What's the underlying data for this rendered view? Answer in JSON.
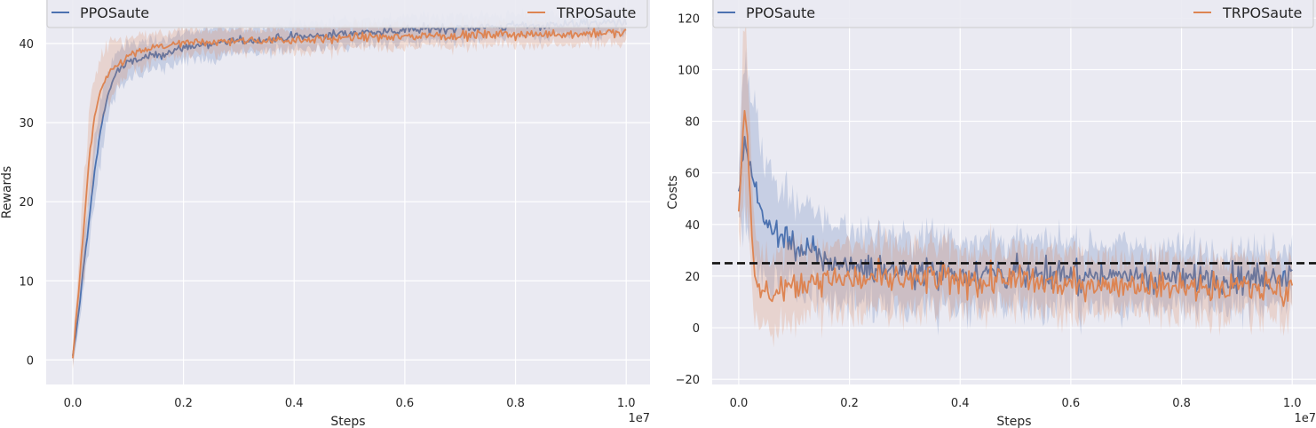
{
  "chart_data": [
    {
      "type": "line",
      "xlabel": "Steps",
      "ylabel": "Rewards",
      "x_multiplier_label": "1e7",
      "xlim": [
        -0.048,
        1.043
      ],
      "ylim": [
        -3.1,
        45.5
      ],
      "xticks": [
        0.0,
        0.2,
        0.4,
        0.6,
        0.8,
        1.0
      ],
      "xtick_labels": [
        "0.0",
        "0.2",
        "0.4",
        "0.6",
        "0.8",
        "1.0"
      ],
      "yticks": [
        0,
        10,
        20,
        30,
        40
      ],
      "ytick_labels": [
        "0",
        "10",
        "20",
        "30",
        "40"
      ],
      "grid": true,
      "legend_position": "top",
      "series": [
        {
          "name": "PPOSaute",
          "color": "#4c72b0",
          "x": [
            0.0,
            0.01,
            0.02,
            0.03,
            0.04,
            0.05,
            0.06,
            0.07,
            0.08,
            0.1,
            0.12,
            0.15,
            0.18,
            0.2,
            0.25,
            0.3,
            0.35,
            0.4,
            0.45,
            0.5,
            0.55,
            0.6,
            0.65,
            0.7,
            0.75,
            0.8,
            0.85,
            0.9,
            0.95,
            1.0
          ],
          "y": [
            0.3,
            5.5,
            12.0,
            18.0,
            24.0,
            29.0,
            32.5,
            35.0,
            36.5,
            37.5,
            38.0,
            38.5,
            39.0,
            39.5,
            40.0,
            40.3,
            40.5,
            40.8,
            41.0,
            41.3,
            41.5,
            41.7,
            41.9,
            42.0,
            42.1,
            42.2,
            42.3,
            42.5,
            42.6,
            42.7
          ],
          "band_halfwidth": [
            1.0,
            2.0,
            3.0,
            3.5,
            3.5,
            3.5,
            3.0,
            2.8,
            2.5,
            2.2,
            2.0,
            1.8,
            1.8,
            1.7,
            1.7,
            1.6,
            1.6,
            1.6,
            1.6,
            1.6,
            1.5,
            1.5,
            1.5,
            1.5,
            1.4,
            1.4,
            1.4,
            1.4,
            1.4,
            1.4
          ]
        },
        {
          "name": "TRPOSaute",
          "color": "#dd8452",
          "x": [
            0.0,
            0.01,
            0.02,
            0.03,
            0.04,
            0.05,
            0.06,
            0.07,
            0.08,
            0.1,
            0.12,
            0.15,
            0.18,
            0.2,
            0.25,
            0.3,
            0.35,
            0.4,
            0.45,
            0.5,
            0.55,
            0.6,
            0.65,
            0.7,
            0.75,
            0.8,
            0.85,
            0.9,
            0.95,
            1.0
          ],
          "y": [
            0.4,
            8.0,
            17.0,
            25.5,
            31.0,
            34.0,
            35.5,
            36.5,
            37.3,
            38.3,
            39.0,
            39.5,
            39.8,
            40.0,
            40.2,
            40.3,
            40.4,
            40.5,
            40.6,
            40.7,
            40.8,
            40.9,
            41.0,
            41.0,
            41.1,
            41.1,
            41.2,
            41.2,
            41.3,
            41.3
          ],
          "band_halfwidth": [
            1.0,
            3.0,
            5.0,
            5.5,
            5.0,
            4.0,
            3.5,
            3.0,
            2.5,
            2.0,
            1.8,
            1.6,
            1.5,
            1.5,
            1.5,
            1.4,
            1.4,
            1.4,
            1.4,
            1.4,
            1.4,
            1.4,
            1.4,
            1.4,
            1.4,
            1.4,
            1.4,
            1.4,
            1.4,
            1.4
          ]
        }
      ]
    },
    {
      "type": "line",
      "xlabel": "Steps",
      "ylabel": "Costs",
      "x_multiplier_label": "1e7",
      "xlim": [
        -0.048,
        1.043
      ],
      "ylim": [
        -22.0,
        127.0
      ],
      "xticks": [
        0.0,
        0.2,
        0.4,
        0.6,
        0.8,
        1.0
      ],
      "xtick_labels": [
        "0.0",
        "0.2",
        "0.4",
        "0.6",
        "0.8",
        "1.0"
      ],
      "yticks": [
        -20,
        0,
        20,
        40,
        60,
        80,
        100,
        120
      ],
      "ytick_labels": [
        "−20",
        "0",
        "20",
        "40",
        "60",
        "80",
        "100",
        "120"
      ],
      "grid": true,
      "legend_position": "top",
      "threshold": 25,
      "series": [
        {
          "name": "PPOSaute",
          "color": "#4c72b0",
          "x": [
            0.0,
            0.005,
            0.01,
            0.02,
            0.03,
            0.04,
            0.05,
            0.06,
            0.08,
            0.1,
            0.12,
            0.15,
            0.2,
            0.25,
            0.3,
            0.35,
            0.4,
            0.45,
            0.5,
            0.55,
            0.6,
            0.65,
            0.7,
            0.75,
            0.8,
            0.85,
            0.9,
            0.95,
            1.0
          ],
          "y": [
            50.0,
            65.0,
            72.0,
            62.0,
            55.0,
            45.0,
            42.0,
            38.0,
            35.0,
            32.0,
            30.0,
            27.0,
            24.0,
            23.0,
            22.0,
            22.0,
            21.5,
            21.0,
            21.0,
            20.5,
            20.5,
            20.0,
            20.0,
            19.5,
            19.5,
            19.0,
            19.0,
            19.0,
            20.0
          ],
          "band_halfwidth": [
            10.0,
            20.0,
            30.0,
            30.0,
            30.0,
            25.0,
            22.0,
            20.0,
            18.0,
            17.0,
            16.0,
            15.0,
            14.0,
            14.0,
            13.0,
            13.0,
            13.0,
            13.0,
            12.0,
            12.0,
            12.0,
            12.0,
            12.0,
            11.0,
            11.0,
            11.0,
            11.0,
            11.0,
            11.0
          ]
        },
        {
          "name": "TRPOSaute",
          "color": "#dd8452",
          "x": [
            0.0,
            0.005,
            0.01,
            0.015,
            0.02,
            0.025,
            0.03,
            0.04,
            0.05,
            0.06,
            0.08,
            0.1,
            0.12,
            0.15,
            0.2,
            0.25,
            0.3,
            0.35,
            0.4,
            0.45,
            0.5,
            0.55,
            0.6,
            0.65,
            0.7,
            0.75,
            0.8,
            0.85,
            0.9,
            0.95,
            1.0
          ],
          "y": [
            48.0,
            65.0,
            85.0,
            78.0,
            55.0,
            30.0,
            15.0,
            13.0,
            14.0,
            15.0,
            16.0,
            17.0,
            18.0,
            19.0,
            19.0,
            19.0,
            18.5,
            18.5,
            18.0,
            18.0,
            18.0,
            17.5,
            17.5,
            17.0,
            17.0,
            16.5,
            16.5,
            16.0,
            16.0,
            15.5,
            16.0
          ],
          "band_halfwidth": [
            10.0,
            25.0,
            35.0,
            35.0,
            30.0,
            22.0,
            15.0,
            14.0,
            13.0,
            13.0,
            13.0,
            13.0,
            12.0,
            12.0,
            12.0,
            12.0,
            12.0,
            12.0,
            11.0,
            11.0,
            11.0,
            11.0,
            11.0,
            10.0,
            10.0,
            10.0,
            10.0,
            10.0,
            10.0,
            10.0,
            10.0
          ]
        }
      ]
    }
  ]
}
